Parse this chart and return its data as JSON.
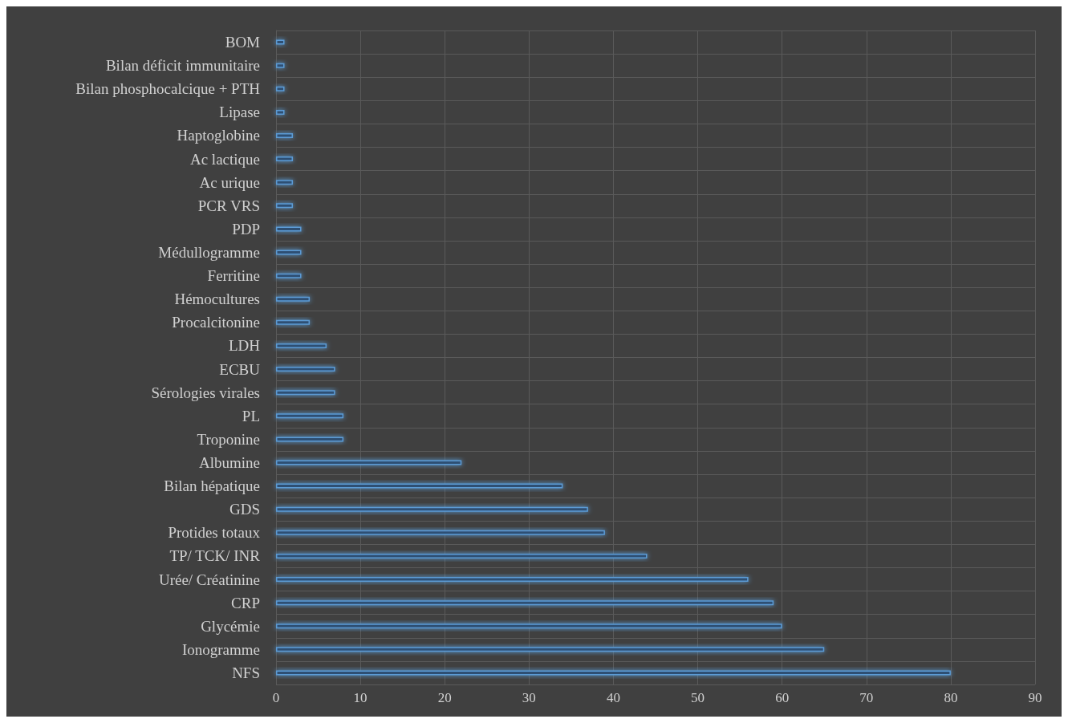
{
  "chart_data": {
    "type": "bar",
    "orientation": "horizontal",
    "categories": [
      "BOM",
      "Bilan déficit immunitaire",
      "Bilan phosphocalcique + PTH",
      "Lipase",
      "Haptoglobine",
      "Ac lactique",
      "Ac urique",
      "PCR VRS",
      "PDP",
      "Médullogramme",
      "Ferritine",
      "Hémocultures",
      "Procalcitonine",
      "LDH",
      "ECBU",
      "Sérologies virales",
      "PL",
      "Troponine",
      "Albumine",
      "Bilan hépatique",
      "GDS",
      "Protides totaux",
      "TP/ TCK/ INR",
      "Urée/ Créatinine",
      "CRP",
      "Glycémie",
      "Ionogramme",
      "NFS"
    ],
    "values": [
      1,
      1,
      1,
      1,
      2,
      2,
      2,
      2,
      3,
      3,
      3,
      4,
      4,
      6,
      7,
      7,
      8,
      8,
      22,
      34,
      37,
      39,
      44,
      56,
      59,
      60,
      65,
      80
    ],
    "color": "#5b9bd5",
    "xlim": [
      0,
      90
    ],
    "xticks": [
      0,
      10,
      20,
      30,
      40,
      50,
      60,
      70,
      80,
      90
    ],
    "grid": true
  }
}
